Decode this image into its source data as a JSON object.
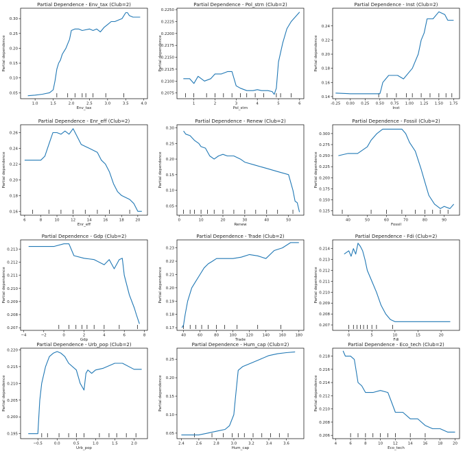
{
  "line_color": "#1f77b4",
  "axis_color": "#000000",
  "chart_data": [
    {
      "type": "line",
      "title": "Partial Dependence - Env_tax (Club=2)",
      "xlabel": "Env_tax",
      "ylabel": "Partial dependence",
      "xlim": [
        0.6,
        4.1
      ],
      "ylim": [
        0.03,
        0.335
      ],
      "xticks": [
        1.0,
        1.5,
        2.0,
        2.5,
        3.0,
        3.5,
        4.0
      ],
      "xticklabels": [
        "1.0",
        "1.5",
        "2.0",
        "2.5",
        "3.0",
        "3.5",
        "4.0"
      ],
      "yticks": [
        0.05,
        0.1,
        0.15,
        0.2,
        0.25,
        0.3
      ],
      "yticklabels": [
        "0.05",
        "0.10",
        "0.15",
        "0.20",
        "0.25",
        "0.30"
      ],
      "x": [
        0.8,
        1.0,
        1.2,
        1.4,
        1.5,
        1.55,
        1.6,
        1.65,
        1.7,
        1.75,
        1.8,
        1.85,
        1.9,
        1.95,
        2.0,
        2.1,
        2.2,
        2.3,
        2.5,
        2.6,
        2.7,
        2.8,
        2.9,
        3.0,
        3.1,
        3.2,
        3.3,
        3.4,
        3.5,
        3.55,
        3.6,
        3.7,
        3.8,
        3.9
      ],
      "y": [
        0.04,
        0.042,
        0.045,
        0.05,
        0.06,
        0.09,
        0.13,
        0.15,
        0.16,
        0.18,
        0.19,
        0.2,
        0.215,
        0.23,
        0.26,
        0.265,
        0.265,
        0.26,
        0.265,
        0.26,
        0.265,
        0.255,
        0.27,
        0.28,
        0.29,
        0.29,
        0.295,
        0.3,
        0.32,
        0.32,
        0.31,
        0.305,
        0.305,
        0.305
      ],
      "rug": [
        1.6,
        1.9,
        2.1,
        2.3,
        2.4,
        2.6,
        2.95,
        3.45
      ]
    },
    {
      "type": "line",
      "title": "Partial Dependence - Pol_strn (Club=2)",
      "xlabel": "Pol_strn",
      "ylabel": "Partial dependence",
      "xlim": [
        0.2,
        6.2
      ],
      "ylim": [
        0.2063,
        0.2253
      ],
      "xticks": [
        1,
        2,
        3,
        4,
        5,
        6
      ],
      "xticklabels": [
        "1",
        "2",
        "3",
        "4",
        "5",
        "6"
      ],
      "yticks": [
        0.2075,
        0.21,
        0.2125,
        0.215,
        0.2175,
        0.22,
        0.2225,
        0.225
      ],
      "yticklabels": [
        "0.2075",
        "0.2100",
        "0.2125",
        "0.2150",
        "0.2175",
        "0.2200",
        "0.2225",
        "0.2250"
      ],
      "x": [
        0.5,
        0.8,
        1.0,
        1.2,
        1.5,
        1.8,
        2.0,
        2.3,
        2.6,
        2.8,
        3.0,
        3.2,
        3.5,
        3.8,
        4.0,
        4.2,
        4.5,
        4.7,
        4.8,
        4.9,
        5.0,
        5.2,
        5.4,
        5.6,
        5.8,
        6.0
      ],
      "y": [
        0.2105,
        0.2105,
        0.2095,
        0.211,
        0.21,
        0.2105,
        0.2115,
        0.2115,
        0.212,
        0.212,
        0.209,
        0.2085,
        0.208,
        0.208,
        0.2082,
        0.208,
        0.208,
        0.2078,
        0.2072,
        0.2085,
        0.214,
        0.218,
        0.221,
        0.2225,
        0.2235,
        0.2245
      ],
      "rug": [
        0.6,
        1.0,
        1.6,
        2.0,
        2.4,
        2.8,
        3.2,
        3.5,
        3.9,
        4.3,
        4.9,
        5.1,
        5.6
      ]
    },
    {
      "type": "line",
      "title": "Partial Dependence - Inst (Club=2)",
      "xlabel": "Inst",
      "ylabel": "Partial dependence",
      "xlim": [
        -0.3,
        1.85
      ],
      "ylim": [
        0.137,
        0.265
      ],
      "xticks": [
        -0.25,
        0.0,
        0.25,
        0.5,
        0.75,
        1.0,
        1.25,
        1.5,
        1.75
      ],
      "xticklabels": [
        "-0.25",
        "0.00",
        "0.25",
        "0.50",
        "0.75",
        "1.00",
        "1.25",
        "1.50",
        "1.75"
      ],
      "yticks": [
        0.14,
        0.16,
        0.18,
        0.2,
        0.22,
        0.24
      ],
      "yticklabels": [
        "0.14",
        "0.16",
        "0.18",
        "0.20",
        "0.22",
        "0.24"
      ],
      "x": [
        -0.25,
        0.0,
        0.25,
        0.5,
        0.52,
        0.55,
        0.6,
        0.65,
        0.7,
        0.8,
        0.9,
        1.0,
        1.05,
        1.1,
        1.15,
        1.2,
        1.25,
        1.3,
        1.4,
        1.5,
        1.55,
        1.6,
        1.65,
        1.7,
        1.75
      ],
      "y": [
        0.145,
        0.144,
        0.144,
        0.144,
        0.15,
        0.16,
        0.165,
        0.17,
        0.17,
        0.17,
        0.165,
        0.175,
        0.18,
        0.19,
        0.2,
        0.22,
        0.23,
        0.25,
        0.25,
        0.26,
        0.258,
        0.256,
        0.248,
        0.248,
        0.248
      ],
      "rug": [
        0.48,
        0.62,
        0.78,
        0.95,
        1.05,
        1.2,
        1.35,
        1.5,
        1.62,
        1.72
      ]
    },
    {
      "type": "line",
      "title": "Partial Dependence - Enr_eff (Club=2)",
      "xlabel": "Enr_eff",
      "ylabel": "Partial dependence",
      "xlim": [
        5.5,
        21.2
      ],
      "ylim": [
        0.155,
        0.27
      ],
      "xticks": [
        6,
        8,
        10,
        12,
        14,
        16,
        18,
        20
      ],
      "xticklabels": [
        "6",
        "8",
        "10",
        "12",
        "14",
        "16",
        "18",
        "20"
      ],
      "yticks": [
        0.16,
        0.18,
        0.2,
        0.22,
        0.24,
        0.26
      ],
      "yticklabels": [
        "0.16",
        "0.18",
        "0.20",
        "0.22",
        "0.24",
        "0.26"
      ],
      "x": [
        6,
        7,
        8,
        8.5,
        9,
        9.5,
        10,
        10.5,
        11,
        11.5,
        12,
        12.5,
        13,
        14,
        15,
        15.5,
        16,
        16.5,
        17,
        17.5,
        18,
        19,
        19.5,
        20,
        20.5
      ],
      "y": [
        0.225,
        0.225,
        0.225,
        0.23,
        0.245,
        0.26,
        0.26,
        0.258,
        0.262,
        0.258,
        0.265,
        0.255,
        0.245,
        0.24,
        0.235,
        0.225,
        0.22,
        0.21,
        0.195,
        0.185,
        0.18,
        0.175,
        0.17,
        0.16,
        0.16
      ],
      "rug": [
        7,
        9,
        10.5,
        12,
        13.5,
        15,
        16.5,
        19
      ]
    },
    {
      "type": "line",
      "title": "Partial Dependence - Renew (Club=2)",
      "xlabel": "Renew",
      "ylabel": "Partial dependence",
      "xlim": [
        -1,
        57
      ],
      "ylim": [
        0.02,
        0.31
      ],
      "xticks": [
        0,
        10,
        20,
        30,
        40,
        50
      ],
      "xticklabels": [
        "0",
        "10",
        "20",
        "30",
        "40",
        "50"
      ],
      "yticks": [
        0.05,
        0.1,
        0.15,
        0.2,
        0.25,
        0.3
      ],
      "yticklabels": [
        "0.05",
        "0.10",
        "0.15",
        "0.20",
        "0.25",
        "0.30"
      ],
      "x": [
        2,
        3,
        5,
        7,
        9,
        10,
        12,
        14,
        16,
        18,
        20,
        22,
        25,
        28,
        30,
        35,
        40,
        45,
        50,
        52,
        53,
        54,
        55
      ],
      "y": [
        0.29,
        0.28,
        0.275,
        0.26,
        0.25,
        0.24,
        0.235,
        0.21,
        0.2,
        0.21,
        0.215,
        0.21,
        0.21,
        0.2,
        0.19,
        0.18,
        0.17,
        0.16,
        0.15,
        0.1,
        0.065,
        0.06,
        0.03
      ],
      "rug": [
        2,
        5,
        7,
        10,
        13,
        16,
        20,
        25,
        30,
        35,
        40,
        45,
        52
      ]
    },
    {
      "type": "line",
      "title": "Partial Dependence - Fossil (Club=2)",
      "xlabel": "Fossil",
      "ylabel": "Partial dependence",
      "xlim": [
        32,
        98
      ],
      "ylim": [
        0.115,
        0.32
      ],
      "xticks": [
        40,
        50,
        60,
        70,
        80,
        90
      ],
      "xticklabels": [
        "40",
        "50",
        "60",
        "70",
        "80",
        "90"
      ],
      "yticks": [
        0.125,
        0.15,
        0.175,
        0.2,
        0.225,
        0.25,
        0.275,
        0.3
      ],
      "yticklabels": [
        "0.125",
        "0.150",
        "0.175",
        "0.200",
        "0.225",
        "0.250",
        "0.275",
        "0.300"
      ],
      "x": [
        35,
        40,
        45,
        50,
        52,
        55,
        58,
        60,
        62,
        65,
        68,
        70,
        72,
        75,
        78,
        80,
        82,
        85,
        88,
        90,
        93,
        95
      ],
      "y": [
        0.25,
        0.255,
        0.255,
        0.27,
        0.285,
        0.3,
        0.31,
        0.31,
        0.31,
        0.31,
        0.31,
        0.3,
        0.28,
        0.26,
        0.22,
        0.19,
        0.16,
        0.14,
        0.13,
        0.135,
        0.13,
        0.14
      ],
      "rug": [
        37,
        52,
        60,
        68,
        75,
        80,
        84,
        88,
        92
      ]
    },
    {
      "type": "line",
      "title": "Partial Dependence - Gdp (Club=2)",
      "xlabel": "Gdp",
      "ylabel": "Partial dependence",
      "xlim": [
        -4.3,
        8.3
      ],
      "ylim": [
        0.2068,
        0.2137
      ],
      "xticks": [
        -4,
        -2,
        0,
        2,
        4,
        6,
        8
      ],
      "xticklabels": [
        "−4",
        "−2",
        "0",
        "2",
        "4",
        "6",
        "8"
      ],
      "yticks": [
        0.207,
        0.208,
        0.209,
        0.21,
        0.211,
        0.212,
        0.213
      ],
      "yticklabels": [
        "0.207",
        "0.208",
        "0.209",
        "0.210",
        "0.211",
        "0.212",
        "0.213"
      ],
      "x": [
        -3.5,
        -2,
        -1,
        0,
        0.5,
        1,
        2,
        3,
        4,
        4.5,
        5,
        5.5,
        5.8,
        6,
        6.5,
        7,
        7.2,
        7.5
      ],
      "y": [
        0.2132,
        0.2132,
        0.2132,
        0.2134,
        0.2134,
        0.2125,
        0.2123,
        0.2122,
        0.2118,
        0.2122,
        0.2115,
        0.2122,
        0.2123,
        0.211,
        0.2095,
        0.2085,
        0.208,
        0.2073
      ],
      "rug": [
        -0.5,
        0.5,
        1.2,
        1.8,
        2.3,
        3.0,
        4.0,
        5.5,
        7.3
      ]
    },
    {
      "type": "line",
      "title": "Partial Dependence - Trade (Club=2)",
      "xlabel": "Trade",
      "ylabel": "Partial dependence",
      "xlim": [
        32,
        186
      ],
      "ylim": [
        0.168,
        0.236
      ],
      "xticks": [
        40,
        60,
        80,
        100,
        120,
        140,
        160,
        180
      ],
      "xticklabels": [
        "40",
        "60",
        "80",
        "100",
        "120",
        "140",
        "160",
        "180"
      ],
      "yticks": [
        0.17,
        0.18,
        0.19,
        0.2,
        0.21,
        0.22,
        0.23
      ],
      "yticklabels": [
        "0.17",
        "0.18",
        "0.19",
        "0.20",
        "0.21",
        "0.22",
        "0.23"
      ],
      "x": [
        38,
        40,
        42,
        45,
        50,
        55,
        60,
        65,
        70,
        75,
        80,
        90,
        100,
        110,
        120,
        130,
        140,
        150,
        160,
        170,
        180
      ],
      "y": [
        0.17,
        0.172,
        0.18,
        0.19,
        0.2,
        0.205,
        0.21,
        0.215,
        0.218,
        0.22,
        0.222,
        0.222,
        0.222,
        0.223,
        0.225,
        0.224,
        0.222,
        0.228,
        0.23,
        0.234,
        0.234
      ],
      "rug": [
        40,
        48,
        55,
        62,
        70,
        80,
        90,
        105,
        130,
        158
      ]
    },
    {
      "type": "line",
      "title": "Partial Dependence - Fdi (Club=2)",
      "xlabel": "Fdi",
      "ylabel": "Partial dependence",
      "xlim": [
        -3.5,
        24
      ],
      "ylim": [
        0.2065,
        0.2148
      ],
      "xticks": [
        0,
        5,
        10,
        15,
        20
      ],
      "xticklabels": [
        "0",
        "5",
        "10",
        "15",
        "20"
      ],
      "yticks": [
        0.207,
        0.208,
        0.209,
        0.21,
        0.211,
        0.212,
        0.213,
        0.214
      ],
      "yticklabels": [
        "0.207",
        "0.208",
        "0.209",
        "0.210",
        "0.211",
        "0.212",
        "0.213",
        "0.214"
      ],
      "x": [
        -1,
        0,
        0.5,
        1,
        1.5,
        2,
        2.5,
        3,
        3.5,
        4,
        5,
        6,
        7,
        8,
        9,
        10,
        12,
        15,
        18,
        20,
        22
      ],
      "y": [
        0.2135,
        0.2138,
        0.2133,
        0.214,
        0.2135,
        0.2145,
        0.2142,
        0.2138,
        0.213,
        0.212,
        0.211,
        0.21,
        0.2088,
        0.208,
        0.2075,
        0.2073,
        0.2073,
        0.2073,
        0.2073,
        0.2073,
        0.2073
      ],
      "rug": [
        0,
        1,
        1.8,
        2.5,
        3.2,
        4,
        5,
        6,
        9.5
      ]
    },
    {
      "type": "line",
      "title": "Partial Dependence - Urb_pop (Club=2)",
      "xlabel": "Urb_pop",
      "ylabel": "Partial dependence",
      "xlim": [
        -0.95,
        2.35
      ],
      "ylim": [
        0.1935,
        0.2205
      ],
      "xticks": [
        -0.5,
        0.0,
        0.5,
        1.0,
        1.5,
        2.0
      ],
      "xticklabels": [
        "−0.5",
        "0.0",
        "0.5",
        "1.0",
        "1.5",
        "2.0"
      ],
      "yticks": [
        0.195,
        0.2,
        0.205,
        0.21,
        0.215,
        0.22
      ],
      "yticklabels": [
        "0.195",
        "0.200",
        "0.205",
        "0.210",
        "0.215",
        "0.220"
      ],
      "x": [
        -0.75,
        -0.5,
        -0.45,
        -0.4,
        -0.3,
        -0.2,
        -0.1,
        0.0,
        0.1,
        0.2,
        0.3,
        0.5,
        0.6,
        0.7,
        0.75,
        0.8,
        0.9,
        1.0,
        1.2,
        1.5,
        1.7,
        2.0,
        2.2
      ],
      "y": [
        0.195,
        0.195,
        0.205,
        0.21,
        0.215,
        0.218,
        0.219,
        0.2195,
        0.219,
        0.218,
        0.216,
        0.214,
        0.21,
        0.208,
        0.213,
        0.214,
        0.213,
        0.214,
        0.2145,
        0.216,
        0.216,
        0.2142,
        0.2142
      ],
      "rug": [
        -0.4,
        -0.25,
        0.05,
        0.3,
        0.5,
        0.7,
        1.1,
        1.35,
        1.55,
        1.8,
        2.05
      ]
    },
    {
      "type": "line",
      "title": "Partial Dependence - Hum_cap (Club=2)",
      "xlabel": "Hum_cap",
      "ylabel": "Partial dependence",
      "xlim": [
        2.35,
        3.8
      ],
      "ylim": [
        0.035,
        0.28
      ],
      "xticks": [
        2.4,
        2.6,
        2.8,
        3.0,
        3.2,
        3.4,
        3.6
      ],
      "xticklabels": [
        "2.4",
        "2.6",
        "2.8",
        "3.0",
        "3.2",
        "3.4",
        "3.6"
      ],
      "yticks": [
        0.05,
        0.1,
        0.15,
        0.2,
        0.25
      ],
      "yticklabels": [
        "0.05",
        "0.10",
        "0.15",
        "0.20",
        "0.25"
      ],
      "x": [
        2.4,
        2.5,
        2.6,
        2.7,
        2.8,
        2.9,
        2.95,
        3.0,
        3.02,
        3.05,
        3.1,
        3.2,
        3.3,
        3.4,
        3.5,
        3.6,
        3.7
      ],
      "y": [
        0.045,
        0.045,
        0.045,
        0.05,
        0.055,
        0.06,
        0.07,
        0.1,
        0.15,
        0.22,
        0.23,
        0.24,
        0.25,
        0.26,
        0.265,
        0.268,
        0.27
      ],
      "rug": [
        2.55,
        2.75,
        2.88,
        2.98,
        3.05,
        3.12,
        3.22,
        3.32,
        3.42,
        3.52,
        3.62
      ]
    },
    {
      "type": "line",
      "title": "Partial Dependence - Eco_tech (Club=2)",
      "xlabel": "Eco_tech",
      "ylabel": "Partial dependence",
      "xlim": [
        3.6,
        20.6
      ],
      "ylim": [
        0.2055,
        0.2192
      ],
      "xticks": [
        4,
        6,
        8,
        10,
        12,
        14,
        16,
        18,
        20
      ],
      "xticklabels": [
        "4",
        "6",
        "8",
        "10",
        "12",
        "14",
        "16",
        "18",
        "20"
      ],
      "yticks": [
        0.206,
        0.208,
        0.21,
        0.212,
        0.214,
        0.216,
        0.218
      ],
      "yticklabels": [
        "0.206",
        "0.208",
        "0.210",
        "0.212",
        "0.214",
        "0.216",
        "0.218"
      ],
      "x": [
        5,
        5.3,
        6,
        6.5,
        7,
        7.5,
        8,
        9,
        10,
        11,
        11.5,
        12,
        13,
        14,
        15,
        16,
        17,
        18,
        19,
        20
      ],
      "y": [
        0.2188,
        0.218,
        0.218,
        0.2175,
        0.214,
        0.2135,
        0.2125,
        0.2125,
        0.2128,
        0.2125,
        0.211,
        0.2095,
        0.2095,
        0.2085,
        0.2085,
        0.2075,
        0.207,
        0.207,
        0.2065,
        0.2065
      ],
      "rug": [
        6,
        7,
        8,
        9,
        10,
        11,
        12,
        14,
        16
      ]
    }
  ]
}
